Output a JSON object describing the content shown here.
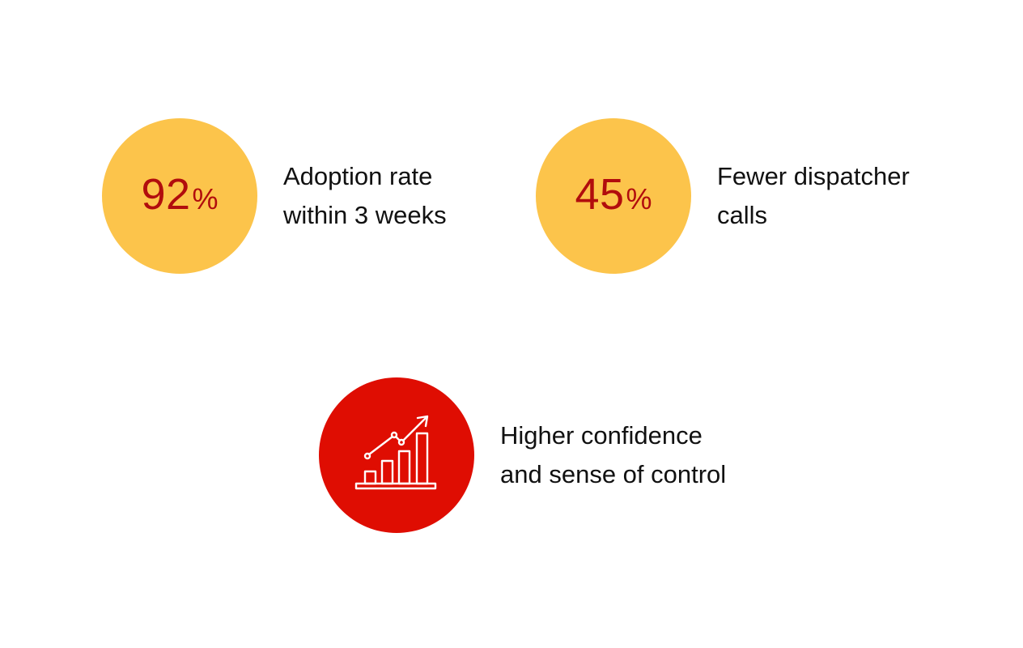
{
  "stats": [
    {
      "value": "92",
      "unit": "%",
      "caption_lines": [
        "Adoption rate",
        "within 3 weeks"
      ],
      "circle_color": "#fcc44b"
    },
    {
      "value": "45",
      "unit": "%",
      "caption_lines": [
        "Fewer dispatcher",
        "calls"
      ],
      "circle_color": "#fcc44b"
    },
    {
      "icon": "growth-chart-icon",
      "caption_lines": [
        "Higher confidence",
        "and sense of control"
      ],
      "circle_color": "#df0d02"
    }
  ],
  "colors": {
    "metric_text": "#b10d0d",
    "caption_text": "#111111",
    "icon_stroke": "#ffffff"
  }
}
